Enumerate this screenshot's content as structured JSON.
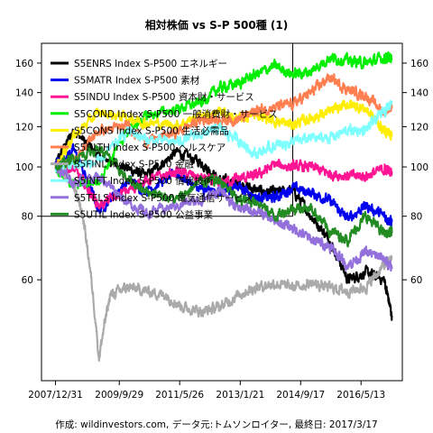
{
  "chart_data": {
    "type": "line",
    "title": "相対株価 vs S-P 500種 (1)",
    "caption": "作成: wildinvestors.com, データ元:トムソンロイター, 最終日: 2017/3/17",
    "x_tick_labels": [
      "2007/12/31",
      "2009/9/29",
      "2011/5/26",
      "2013/1/21",
      "2014/9/17",
      "2016/5/13"
    ],
    "x_ticks": [
      "2007-12-31",
      "2009-09-29",
      "2011-05-26",
      "2013-01-21",
      "2014-09-17",
      "2016-05-13"
    ],
    "xlim": [
      "2007-08-13",
      "2017-06-30"
    ],
    "y_scale": "log",
    "ylim": [
      38,
      175
    ],
    "y_ticks": [
      60,
      80,
      100,
      120,
      140,
      160
    ],
    "reference_lines": {
      "y": 80,
      "x": "2014-06-30"
    },
    "series": [
      {
        "name": "S5ENRS Index S-P500 エネルギー",
        "color": "#000000",
        "x": [
          "2008-01-02",
          "2008-06-30",
          "2009-03-09",
          "2009-12-31",
          "2010-06-30",
          "2011-04-29",
          "2011-12-30",
          "2012-06-29",
          "2012-12-31",
          "2013-06-28",
          "2014-01-02",
          "2014-06-30",
          "2014-12-31",
          "2015-06-30",
          "2015-12-31",
          "2016-06-30",
          "2016-12-30",
          "2017-03-17"
        ],
        "y": [
          101,
          118,
          105,
          99,
          96,
          107,
          102,
          94,
          93,
          90,
          89,
          90,
          80,
          72,
          60,
          62,
          60,
          51
        ]
      },
      {
        "name": "S5MATR Index S-P500 素材",
        "color": "#0000ee",
        "x": [
          "2008-01-02",
          "2008-06-30",
          "2009-03-09",
          "2009-12-31",
          "2010-06-30",
          "2011-04-29",
          "2011-12-30",
          "2012-06-29",
          "2012-12-31",
          "2013-06-28",
          "2014-01-02",
          "2014-06-30",
          "2014-12-31",
          "2015-06-30",
          "2015-12-31",
          "2016-06-30",
          "2016-12-30",
          "2017-03-17"
        ],
        "y": [
          101,
          108,
          82,
          94,
          90,
          97,
          90,
          89,
          92,
          87,
          87,
          91,
          89,
          86,
          79,
          84,
          80,
          78
        ]
      },
      {
        "name": "S5INDU Index S-P500 資本財・サービス",
        "color": "#ff1493",
        "x": [
          "2008-01-02",
          "2008-06-30",
          "2009-03-09",
          "2009-12-31",
          "2010-06-30",
          "2011-04-29",
          "2011-12-30",
          "2012-06-29",
          "2012-12-31",
          "2013-06-28",
          "2014-01-02",
          "2014-06-30",
          "2014-12-31",
          "2015-06-30",
          "2015-12-31",
          "2016-06-30",
          "2016-12-30",
          "2017-03-17"
        ],
        "y": [
          101,
          99,
          84,
          90,
          94,
          98,
          95,
          93,
          95,
          96,
          101,
          100,
          100,
          97,
          96,
          96,
          99,
          98
        ]
      },
      {
        "name": "S5COND Index S-P500 一般消費財・サービス",
        "color": "#00ee00",
        "x": [
          "2008-01-02",
          "2008-06-30",
          "2009-03-09",
          "2009-12-31",
          "2010-06-30",
          "2011-04-29",
          "2011-12-30",
          "2012-06-29",
          "2012-12-31",
          "2013-06-28",
          "2014-01-02",
          "2014-06-30",
          "2014-12-31",
          "2015-06-30",
          "2015-12-31",
          "2016-06-30",
          "2016-12-30",
          "2017-03-17"
        ],
        "y": [
          100,
          92,
          94,
          118,
          126,
          130,
          134,
          143,
          146,
          152,
          158,
          152,
          154,
          164,
          162,
          160,
          164,
          163
        ]
      },
      {
        "name": "S5CONS Index S-P500 生活必需品",
        "color": "#ffee00",
        "x": [
          "2008-01-02",
          "2008-06-30",
          "2009-03-09",
          "2009-12-31",
          "2010-06-30",
          "2011-04-29",
          "2011-12-30",
          "2012-06-29",
          "2012-12-31",
          "2013-06-28",
          "2014-01-02",
          "2014-06-30",
          "2014-12-31",
          "2015-06-30",
          "2015-12-31",
          "2016-06-30",
          "2016-12-30",
          "2017-03-17"
        ],
        "y": [
          100,
          115,
          128,
          125,
          122,
          121,
          126,
          128,
          124,
          127,
          123,
          121,
          125,
          128,
          133,
          130,
          118,
          116
        ]
      },
      {
        "name": "S5HLTH Index S-P500 ヘルスケア",
        "color": "#ff7f50",
        "x": [
          "2008-01-02",
          "2008-06-30",
          "2009-03-09",
          "2009-12-31",
          "2010-06-30",
          "2011-04-29",
          "2011-12-30",
          "2012-06-29",
          "2012-12-31",
          "2013-06-28",
          "2014-01-02",
          "2014-06-30",
          "2014-12-31",
          "2015-06-30",
          "2015-12-31",
          "2016-06-30",
          "2016-12-30",
          "2017-03-17"
        ],
        "y": [
          100,
          103,
          118,
          120,
          112,
          117,
          124,
          124,
          124,
          129,
          131,
          133,
          140,
          150,
          142,
          138,
          128,
          132
        ]
      },
      {
        "name": "S5FINL Index S-P500 金融",
        "color": "#aaaaaa",
        "x": [
          "2008-01-02",
          "2008-06-30",
          "2008-09-30",
          "2009-03-09",
          "2009-06-30",
          "2009-12-31",
          "2010-06-30",
          "2010-12-31",
          "2011-06-30",
          "2011-12-30",
          "2012-06-29",
          "2012-12-31",
          "2013-06-28",
          "2014-01-02",
          "2014-06-30",
          "2014-12-31",
          "2015-06-30",
          "2015-12-31",
          "2016-06-30",
          "2016-12-30",
          "2017-03-17"
        ],
        "y": [
          100,
          92,
          80,
          42,
          56,
          58,
          57,
          56,
          53,
          52,
          53,
          56,
          58,
          59,
          58,
          59,
          58,
          57,
          58,
          64,
          66
        ]
      },
      {
        "name": "S5INFT Index S-P500 情報技術",
        "color": "#80ffff",
        "x": [
          "2008-01-02",
          "2008-06-30",
          "2009-03-09",
          "2009-12-31",
          "2010-06-30",
          "2011-04-29",
          "2011-12-30",
          "2012-06-29",
          "2012-12-31",
          "2013-06-28",
          "2014-01-02",
          "2014-06-30",
          "2014-12-31",
          "2015-06-30",
          "2015-12-31",
          "2016-06-30",
          "2016-12-30",
          "2017-03-17"
        ],
        "y": [
          100,
          101,
          102,
          118,
          113,
          112,
          116,
          119,
          113,
          106,
          110,
          112,
          114,
          114,
          118,
          118,
          129,
          135
        ]
      },
      {
        "name": "S5TELS Index S-P500 電気通信サービス",
        "color": "#9370db",
        "x": [
          "2008-01-02",
          "2008-06-30",
          "2009-03-09",
          "2009-12-31",
          "2010-06-30",
          "2011-04-29",
          "2011-12-30",
          "2012-06-29",
          "2012-12-31",
          "2013-06-28",
          "2014-01-02",
          "2014-06-30",
          "2014-12-31",
          "2015-06-30",
          "2015-12-31",
          "2016-06-30",
          "2016-12-30",
          "2017-03-17"
        ],
        "y": [
          100,
          93,
          96,
          85,
          81,
          84,
          86,
          90,
          83,
          82,
          78,
          76,
          72,
          70,
          64,
          68,
          66,
          63
        ]
      },
      {
        "name": "S5UTIL Index S-P500 公益事業",
        "color": "#228b22",
        "x": [
          "2008-01-02",
          "2008-06-30",
          "2009-03-09",
          "2009-12-31",
          "2010-06-30",
          "2011-04-29",
          "2011-12-30",
          "2012-06-29",
          "2012-12-31",
          "2013-06-28",
          "2014-01-02",
          "2014-06-30",
          "2014-12-31",
          "2015-06-30",
          "2015-12-31",
          "2016-06-30",
          "2016-12-30",
          "2017-03-17"
        ],
        "y": [
          100,
          104,
          109,
          94,
          90,
          86,
          94,
          94,
          86,
          86,
          80,
          83,
          83,
          75,
          72,
          80,
          74,
          74
        ]
      }
    ]
  }
}
